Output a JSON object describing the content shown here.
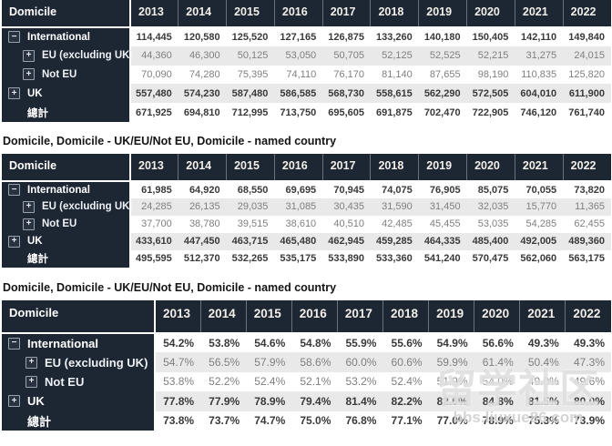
{
  "colors": {
    "header_bg": "#1d2633",
    "stripe_bg": "#e9e9e9",
    "value_bold": "#3a3a3a",
    "value_gray": "#7f7f7f",
    "label_text": "#ffffff",
    "sep_line": "#ffffff"
  },
  "icons": {
    "plus": "+",
    "minus": "−"
  },
  "captions": {
    "section2": "Domicile, Domicile - UK/EU/Not EU, Domicile - named country",
    "section3": "Domicile, Domicile - UK/EU/Not EU, Domicile - named country"
  },
  "watermark": {
    "line1": "留学社区",
    "line2": "bbs.liuxue86.com"
  },
  "tables": [
    {
      "header_label": "Domicile",
      "years": [
        "2013",
        "2014",
        "2015",
        "2016",
        "2017",
        "2018",
        "2019",
        "2020",
        "2021",
        "2022"
      ],
      "rows": [
        {
          "label": "International",
          "icon": "minus",
          "level": 1,
          "emphasis": true,
          "values": [
            "114,445",
            "120,580",
            "125,520",
            "127,165",
            "126,875",
            "133,260",
            "140,180",
            "150,405",
            "142,110",
            "149,840"
          ]
        },
        {
          "label": "EU (excluding UK)",
          "icon": "plus",
          "level": 2,
          "emphasis": false,
          "values": [
            "44,360",
            "46,300",
            "50,125",
            "53,050",
            "50,705",
            "52,125",
            "52,525",
            "52,215",
            "31,275",
            "24,015"
          ]
        },
        {
          "label": "Not EU",
          "icon": "plus",
          "level": 2,
          "emphasis": false,
          "values": [
            "70,090",
            "74,280",
            "75,395",
            "74,110",
            "76,170",
            "81,140",
            "87,655",
            "98,190",
            "110,835",
            "125,820"
          ]
        },
        {
          "label": "UK",
          "icon": "plus",
          "level": 1,
          "emphasis": true,
          "values": [
            "557,480",
            "574,230",
            "587,480",
            "586,585",
            "568,730",
            "558,615",
            "562,290",
            "572,505",
            "604,010",
            "611,900"
          ]
        },
        {
          "label": "總計",
          "icon": "none",
          "level": 1,
          "emphasis": true,
          "values": [
            "671,925",
            "694,810",
            "712,995",
            "713,750",
            "695,605",
            "691,875",
            "702,470",
            "722,905",
            "746,120",
            "761,740"
          ]
        }
      ]
    },
    {
      "header_label": "Domicile",
      "years": [
        "2013",
        "2014",
        "2015",
        "2016",
        "2017",
        "2018",
        "2019",
        "2020",
        "2021",
        "2022"
      ],
      "rows": [
        {
          "label": "International",
          "icon": "minus",
          "level": 1,
          "emphasis": true,
          "values": [
            "61,985",
            "64,920",
            "68,550",
            "69,695",
            "70,945",
            "74,075",
            "76,905",
            "85,075",
            "70,055",
            "73,820"
          ]
        },
        {
          "label": "EU (excluding UK)",
          "icon": "plus",
          "level": 2,
          "emphasis": false,
          "values": [
            "24,285",
            "26,135",
            "29,035",
            "31,085",
            "30,435",
            "31,590",
            "31,450",
            "32,035",
            "15,770",
            "11,365"
          ]
        },
        {
          "label": "Not EU",
          "icon": "plus",
          "level": 2,
          "emphasis": false,
          "values": [
            "37,700",
            "38,780",
            "39,515",
            "38,610",
            "40,510",
            "42,485",
            "45,455",
            "53,035",
            "54,285",
            "62,455"
          ]
        },
        {
          "label": "UK",
          "icon": "plus",
          "level": 1,
          "emphasis": true,
          "values": [
            "433,610",
            "447,450",
            "463,715",
            "465,480",
            "462,945",
            "459,285",
            "464,335",
            "485,400",
            "492,005",
            "489,360"
          ]
        },
        {
          "label": "總計",
          "icon": "none",
          "level": 1,
          "emphasis": true,
          "values": [
            "495,595",
            "512,370",
            "532,265",
            "535,175",
            "533,890",
            "533,360",
            "541,240",
            "570,475",
            "562,060",
            "563,175"
          ]
        }
      ]
    },
    {
      "header_label": "Domicile",
      "years": [
        "2013",
        "2014",
        "2015",
        "2016",
        "2017",
        "2018",
        "2019",
        "2020",
        "2021",
        "2022"
      ],
      "rows": [
        {
          "label": "International",
          "icon": "minus",
          "level": 1,
          "emphasis": true,
          "values": [
            "54.2%",
            "53.8%",
            "54.6%",
            "54.8%",
            "55.9%",
            "55.6%",
            "54.9%",
            "56.6%",
            "49.3%",
            "49.3%"
          ]
        },
        {
          "label": "EU (excluding UK)",
          "icon": "plus",
          "level": 2,
          "emphasis": false,
          "values": [
            "54.7%",
            "56.5%",
            "57.9%",
            "58.6%",
            "60.0%",
            "60.6%",
            "59.9%",
            "61.4%",
            "50.4%",
            "47.3%"
          ]
        },
        {
          "label": "Not EU",
          "icon": "plus",
          "level": 2,
          "emphasis": false,
          "values": [
            "53.8%",
            "52.2%",
            "52.4%",
            "52.1%",
            "53.2%",
            "52.4%",
            "51.9%",
            "54.0%",
            "49.0%",
            "49.6%"
          ]
        },
        {
          "label": "UK",
          "icon": "plus",
          "level": 1,
          "emphasis": true,
          "values": [
            "77.8%",
            "77.9%",
            "78.9%",
            "79.4%",
            "81.4%",
            "82.2%",
            "82.6%",
            "84.8%",
            "81.5%",
            "80.0%"
          ]
        },
        {
          "label": "總計",
          "icon": "none",
          "level": 1,
          "emphasis": true,
          "values": [
            "73.8%",
            "73.7%",
            "74.7%",
            "75.0%",
            "76.8%",
            "77.1%",
            "77.0%",
            "78.9%",
            "75.3%",
            "73.9%"
          ]
        }
      ]
    }
  ]
}
